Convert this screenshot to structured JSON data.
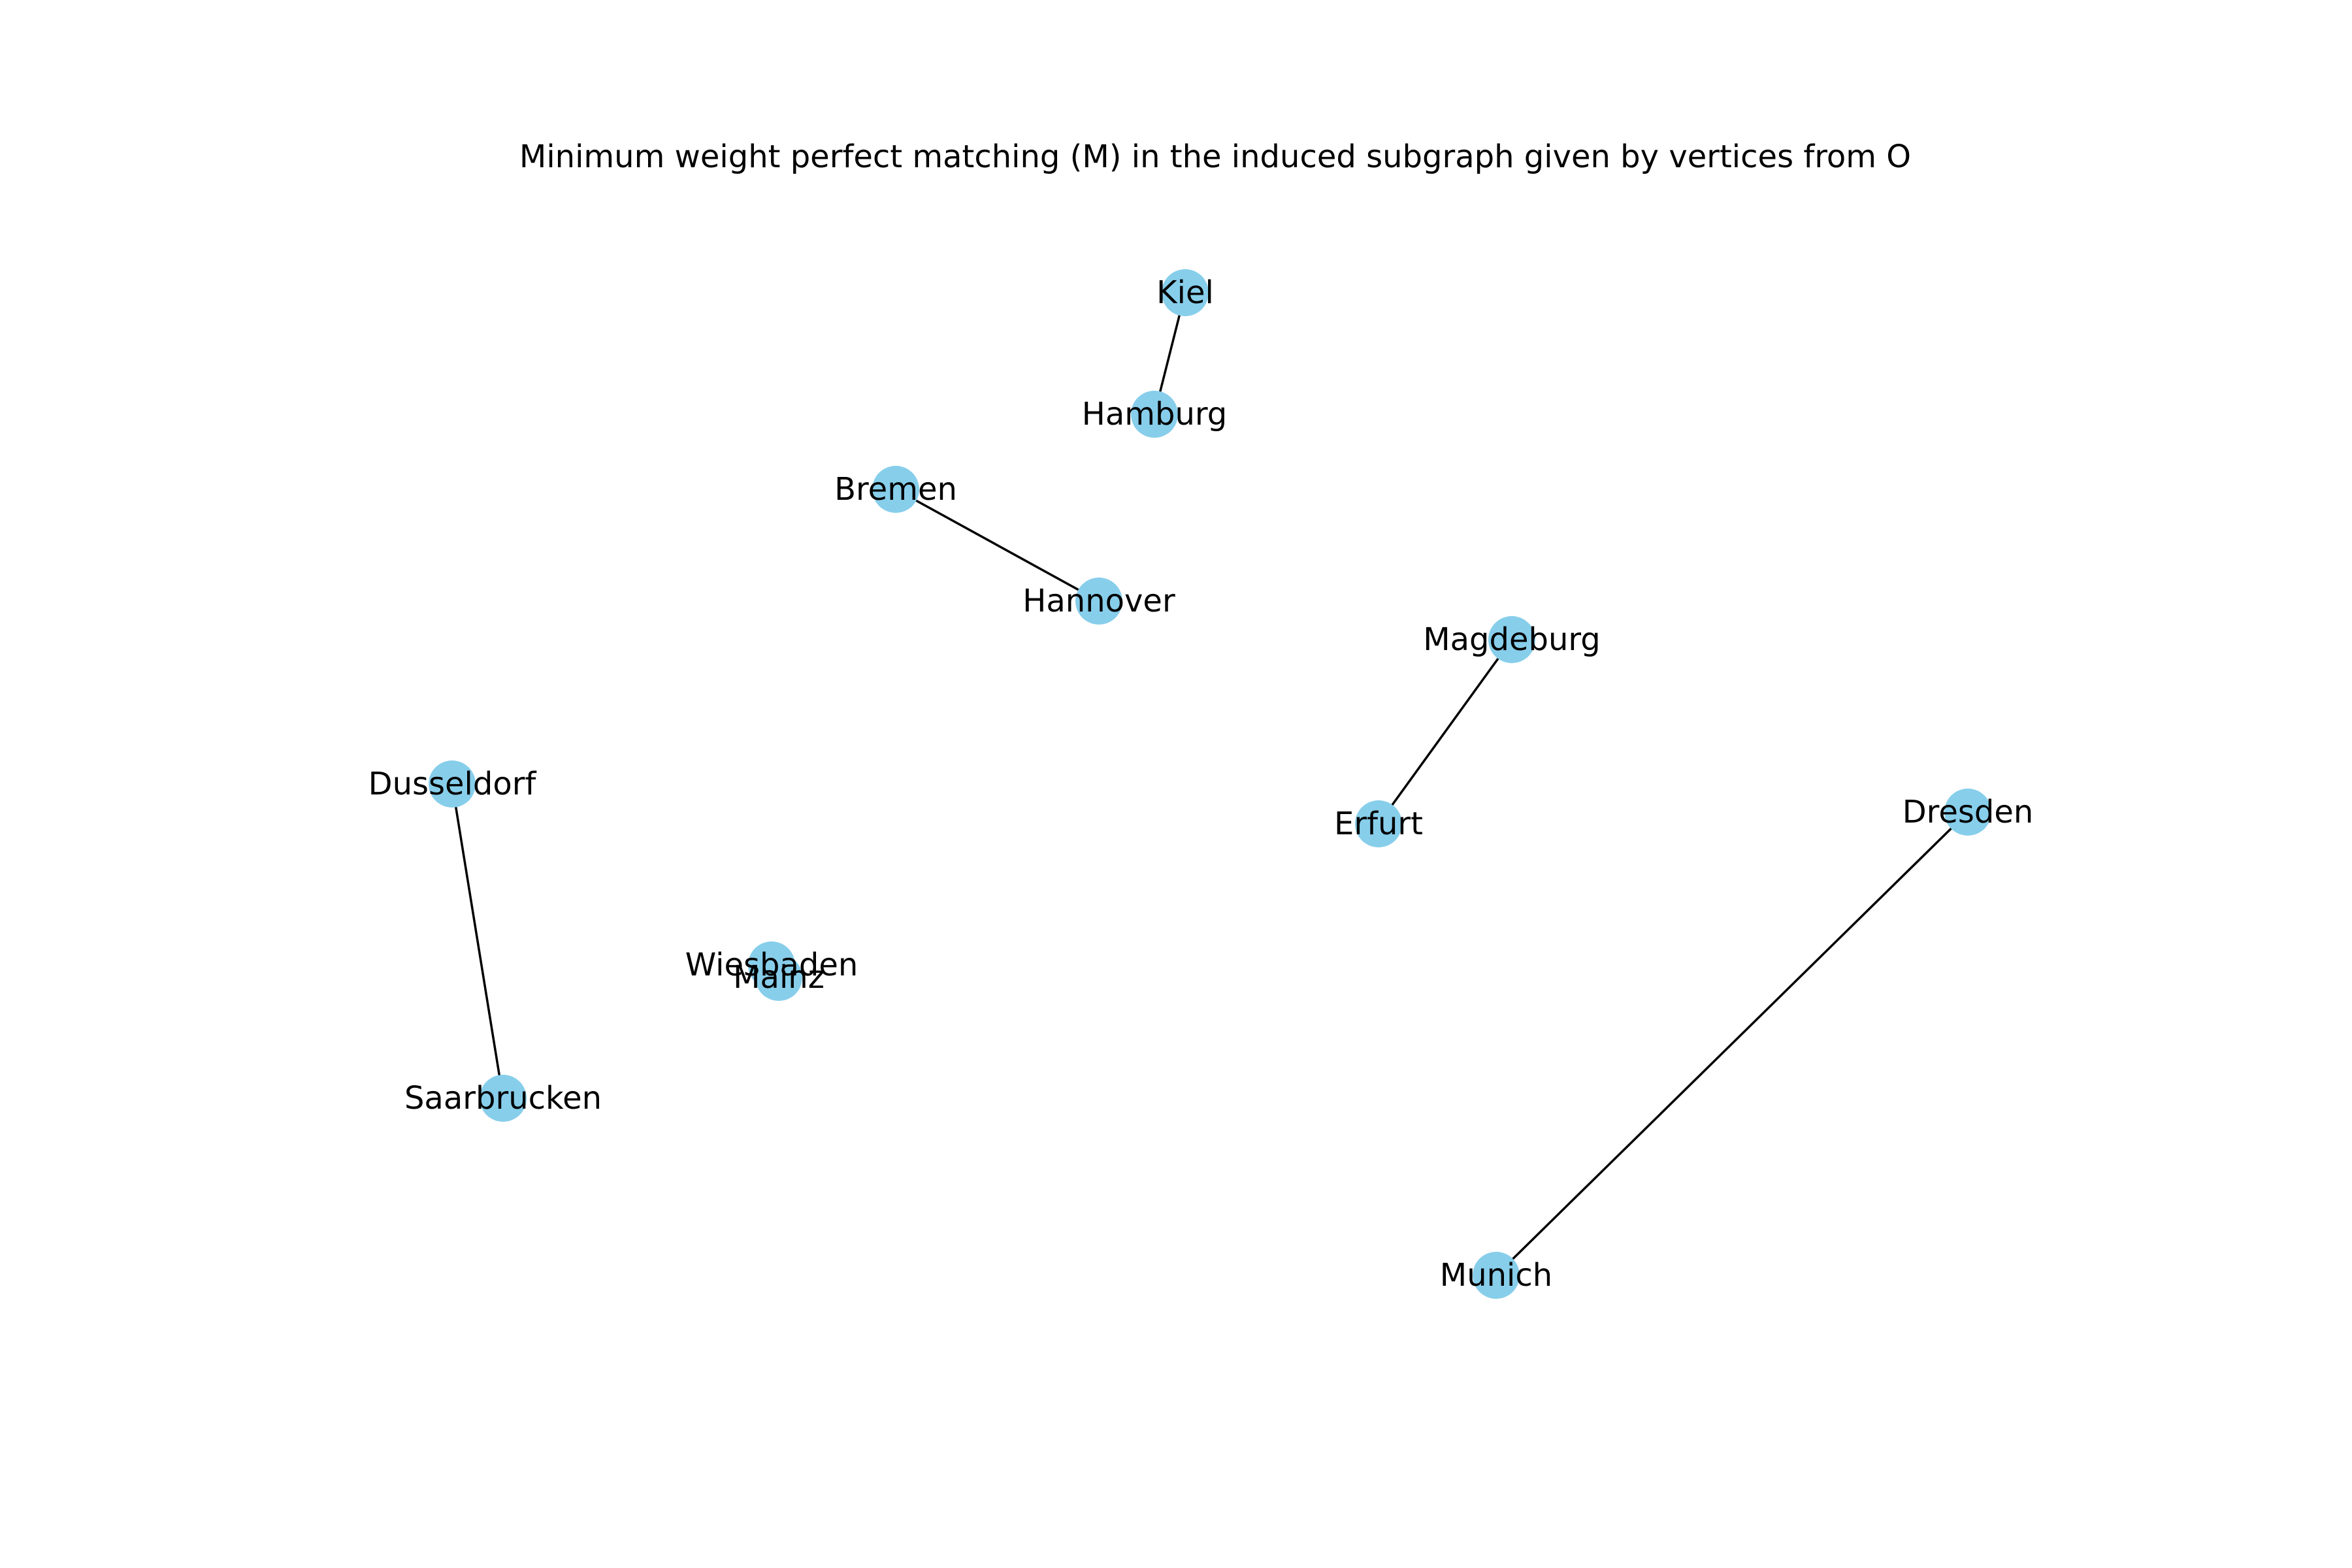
{
  "title": "Minimum weight perfect matching (M) in the induced subgraph given by vertices from O",
  "colors": {
    "node": "#87ceeb",
    "edge": "#000000",
    "label": "#000000",
    "background": "#ffffff"
  },
  "nodes": [
    {
      "id": "kiel",
      "label": "Kiel"
    },
    {
      "id": "hamburg",
      "label": "Hamburg"
    },
    {
      "id": "bremen",
      "label": "Bremen"
    },
    {
      "id": "hannover",
      "label": "Hannover"
    },
    {
      "id": "magdeburg",
      "label": "Magdeburg"
    },
    {
      "id": "erfurt",
      "label": "Erfurt"
    },
    {
      "id": "dresden",
      "label": "Dresden"
    },
    {
      "id": "munich",
      "label": "Munich"
    },
    {
      "id": "dusseldorf",
      "label": "Dusseldorf"
    },
    {
      "id": "saarbrucken",
      "label": "Saarbrucken"
    },
    {
      "id": "wiesbaden",
      "label": "Wiesbaden"
    },
    {
      "id": "mainz",
      "label": "Mainz"
    }
  ],
  "edges": [
    {
      "source": "kiel",
      "target": "hamburg"
    },
    {
      "source": "bremen",
      "target": "hannover"
    },
    {
      "source": "magdeburg",
      "target": "erfurt"
    },
    {
      "source": "dresden",
      "target": "munich"
    },
    {
      "source": "dusseldorf",
      "target": "saarbrucken"
    },
    {
      "source": "wiesbaden",
      "target": "mainz"
    }
  ]
}
